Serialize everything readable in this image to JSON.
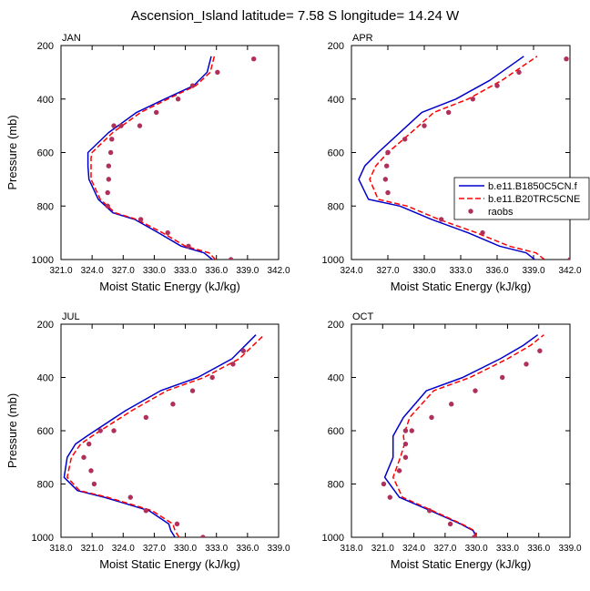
{
  "title": "Ascension_Island  latitude= 7.58 S longitude= 14.24 W",
  "legend": {
    "entries": [
      {
        "label": "b.e11.B1850C5CN.f",
        "color": "#0000cc",
        "style": "solid"
      },
      {
        "label": "b.e11.B20TRC5CNE",
        "color": "#ff0000",
        "style": "dashed"
      },
      {
        "label": "raobs",
        "color": "#b0305a",
        "style": "marker"
      }
    ]
  },
  "chart_data": [
    {
      "type": "line",
      "panel": "JAN",
      "xlabel": "Moist Static Energy (kJ/kg)",
      "ylabel": "Pressure (mb)",
      "xlim": [
        321,
        342
      ],
      "ylim": [
        1000,
        200
      ],
      "y_reversed": true,
      "xticks": [
        321,
        324,
        327,
        330,
        333,
        336,
        339,
        342
      ],
      "xtick_labels": [
        "321.0",
        "324.0",
        "327.0",
        "330.0",
        "333.0",
        "336.0",
        "339.0",
        "342.0"
      ],
      "yticks": [
        200,
        400,
        600,
        800,
        1000
      ],
      "ytick_labels": [
        "200",
        "400",
        "600",
        "800",
        "1000"
      ],
      "series": [
        {
          "name": "b.e11.B1850C5CN.f",
          "color": "#0000cc",
          "dash": false,
          "x": [
            335.6,
            334.8,
            332.6,
            330.4,
            328.1,
            326.0,
            324.6,
            323.7,
            323.6,
            323.6,
            323.6,
            325.6,
            328.3,
            331.0,
            333.8,
            335.1,
            335.5
          ],
          "y": [
            1000,
            975,
            950,
            900,
            850,
            825,
            775,
            700,
            650,
            620,
            600,
            525,
            450,
            400,
            350,
            300,
            240
          ]
        },
        {
          "name": "b.e11.B20TRC5CNE",
          "color": "#ff0000",
          "dash": true,
          "x": [
            335.9,
            335.3,
            333.0,
            330.8,
            328.3,
            326.2,
            324.8,
            323.9,
            323.9,
            323.9,
            324.0,
            326.0,
            328.7,
            331.3,
            334.0,
            335.4,
            335.8
          ],
          "y": [
            1000,
            975,
            950,
            900,
            850,
            825,
            775,
            700,
            650,
            620,
            600,
            525,
            450,
            400,
            350,
            300,
            240
          ]
        },
        {
          "name": "raobs",
          "color": "#b0305a",
          "marker": true,
          "x": [
            337.4,
            333.3,
            331.3,
            328.7,
            325.5,
            325.5,
            325.6,
            325.6,
            325.8,
            325.9,
            326.1,
            326.8,
            328.6,
            330.2,
            332.3,
            333.7,
            336.1,
            339.6
          ],
          "y": [
            1000,
            950,
            900,
            850,
            800,
            750,
            700,
            650,
            600,
            550,
            500,
            500,
            500,
            450,
            400,
            350,
            300,
            250
          ]
        }
      ]
    },
    {
      "type": "line",
      "panel": "APR",
      "xlabel": "Moist Static Energy (kJ/kg)",
      "ylabel": "",
      "xlim": [
        324,
        342
      ],
      "ylim": [
        1000,
        200
      ],
      "y_reversed": true,
      "xticks": [
        324,
        327,
        330,
        333,
        336,
        339,
        342
      ],
      "xtick_labels": [
        "324.0",
        "327.0",
        "330.0",
        "333.0",
        "336.0",
        "339.0",
        "342.0"
      ],
      "yticks": [
        200,
        400,
        600,
        800,
        1000
      ],
      "ytick_labels": [
        "200",
        "400",
        "600",
        "800",
        "1000"
      ],
      "series": [
        {
          "name": "b.e11.B1850C5CN.f",
          "color": "#0000cc",
          "dash": false,
          "x": [
            339.1,
            338.4,
            336.2,
            333.6,
            330.6,
            328.0,
            325.4,
            324.6,
            325.1,
            326.2,
            327.4,
            329.8,
            332.6,
            335.4,
            338.2
          ],
          "y": [
            1000,
            975,
            950,
            900,
            850,
            800,
            775,
            700,
            650,
            600,
            550,
            450,
            400,
            330,
            240
          ]
        },
        {
          "name": "b.e11.B20TRC5CNE",
          "color": "#ff0000",
          "dash": true,
          "x": [
            339.9,
            339.2,
            337.0,
            334.3,
            331.2,
            328.6,
            326.2,
            325.5,
            326.0,
            327.0,
            328.3,
            330.8,
            333.6,
            336.4,
            339.3
          ],
          "y": [
            1000,
            975,
            950,
            900,
            850,
            800,
            775,
            700,
            650,
            600,
            550,
            450,
            400,
            330,
            240
          ]
        },
        {
          "name": "raobs",
          "color": "#b0305a",
          "marker": true,
          "x": [
            342.0,
            334.8,
            331.4,
            327.0,
            326.8,
            326.9,
            327.0,
            327.0,
            328.4,
            330.0,
            332.0,
            334.0,
            336.0,
            337.8,
            341.7
          ],
          "y": [
            1000,
            900,
            850,
            750,
            700,
            650,
            600,
            600,
            550,
            500,
            450,
            400,
            350,
            300,
            250
          ]
        }
      ]
    },
    {
      "type": "line",
      "panel": "JUL",
      "xlabel": "Moist Static Energy (kJ/kg)",
      "ylabel": "Pressure (mb)",
      "xlim": [
        318,
        339
      ],
      "ylim": [
        1000,
        200
      ],
      "y_reversed": true,
      "xticks": [
        318,
        321,
        324,
        327,
        330,
        333,
        336,
        339
      ],
      "xtick_labels": [
        "318.0",
        "321.0",
        "324.0",
        "327.0",
        "330.0",
        "333.0",
        "336.0",
        "339.0"
      ],
      "yticks": [
        200,
        400,
        600,
        800,
        1000
      ],
      "ytick_labels": [
        "200",
        "400",
        "600",
        "800",
        "1000"
      ],
      "series": [
        {
          "name": "b.e11.B1850C5CN.f",
          "color": "#0000cc",
          "dash": false,
          "x": [
            329.0,
            328.6,
            328.4,
            326.5,
            322.2,
            319.6,
            318.3,
            318.6,
            319.4,
            320.5,
            324.2,
            327.6,
            331.2,
            334.5,
            336.8
          ],
          "y": [
            1000,
            975,
            950,
            900,
            850,
            825,
            775,
            700,
            650,
            620,
            525,
            450,
            400,
            330,
            240
          ]
        },
        {
          "name": "b.e11.B20TRC5CNE",
          "color": "#ff0000",
          "dash": true,
          "x": [
            329.4,
            329.0,
            328.8,
            326.8,
            322.5,
            319.8,
            318.6,
            319.0,
            319.9,
            321.0,
            324.8,
            328.2,
            331.8,
            335.2,
            337.6
          ],
          "y": [
            1000,
            975,
            950,
            900,
            850,
            825,
            775,
            700,
            650,
            620,
            525,
            450,
            400,
            330,
            240
          ]
        },
        {
          "name": "raobs",
          "color": "#b0305a",
          "marker": true,
          "x": [
            331.7,
            329.2,
            326.2,
            324.7,
            321.2,
            320.9,
            320.2,
            320.7,
            321.8,
            323.1,
            326.2,
            328.8,
            330.7,
            332.6,
            334.6,
            335.6
          ],
          "y": [
            1000,
            950,
            900,
            850,
            800,
            750,
            700,
            650,
            600,
            600,
            550,
            500,
            450,
            400,
            350,
            300
          ]
        }
      ]
    },
    {
      "type": "line",
      "panel": "OCT",
      "xlabel": "Moist Static Energy (kJ/kg)",
      "ylabel": "",
      "xlim": [
        318,
        339
      ],
      "ylim": [
        1000,
        200
      ],
      "y_reversed": true,
      "xticks": [
        318,
        321,
        324,
        327,
        330,
        333,
        336,
        339
      ],
      "xtick_labels": [
        "318.0",
        "321.0",
        "324.0",
        "327.0",
        "330.0",
        "333.0",
        "336.0",
        "339.0"
      ],
      "yticks": [
        200,
        400,
        600,
        800,
        1000
      ],
      "ytick_labels": [
        "200",
        "400",
        "600",
        "800",
        "1000"
      ],
      "series": [
        {
          "name": "b.e11.B1850C5CN.f",
          "color": "#0000cc",
          "dash": false,
          "x": [
            330.0,
            329.7,
            328.5,
            325.6,
            322.6,
            321.2,
            322.0,
            322.0,
            322.0,
            323.0,
            325.2,
            328.7,
            332.3,
            334.5,
            335.9
          ],
          "y": [
            1000,
            975,
            950,
            900,
            850,
            775,
            700,
            650,
            620,
            550,
            450,
            400,
            330,
            280,
            240
          ]
        },
        {
          "name": "b.e11.B20TRC5CNE",
          "color": "#ff0000",
          "dash": true,
          "x": [
            330.0,
            329.8,
            328.6,
            325.8,
            322.9,
            322.0,
            322.7,
            323.1,
            323.0,
            323.6,
            325.9,
            329.4,
            333.0,
            335.2,
            336.5
          ],
          "y": [
            1000,
            975,
            950,
            900,
            850,
            775,
            700,
            650,
            620,
            550,
            450,
            400,
            330,
            280,
            240
          ]
        },
        {
          "name": "raobs",
          "color": "#b0305a",
          "marker": true,
          "x": [
            329.8,
            327.5,
            325.5,
            321.7,
            321.1,
            322.6,
            323.2,
            323.2,
            323.2,
            323.8,
            325.7,
            327.6,
            329.9,
            332.5,
            334.8,
            336.1
          ],
          "y": [
            1000,
            950,
            900,
            850,
            800,
            750,
            700,
            650,
            600,
            600,
            550,
            500,
            450,
            400,
            350,
            300
          ]
        }
      ]
    }
  ]
}
